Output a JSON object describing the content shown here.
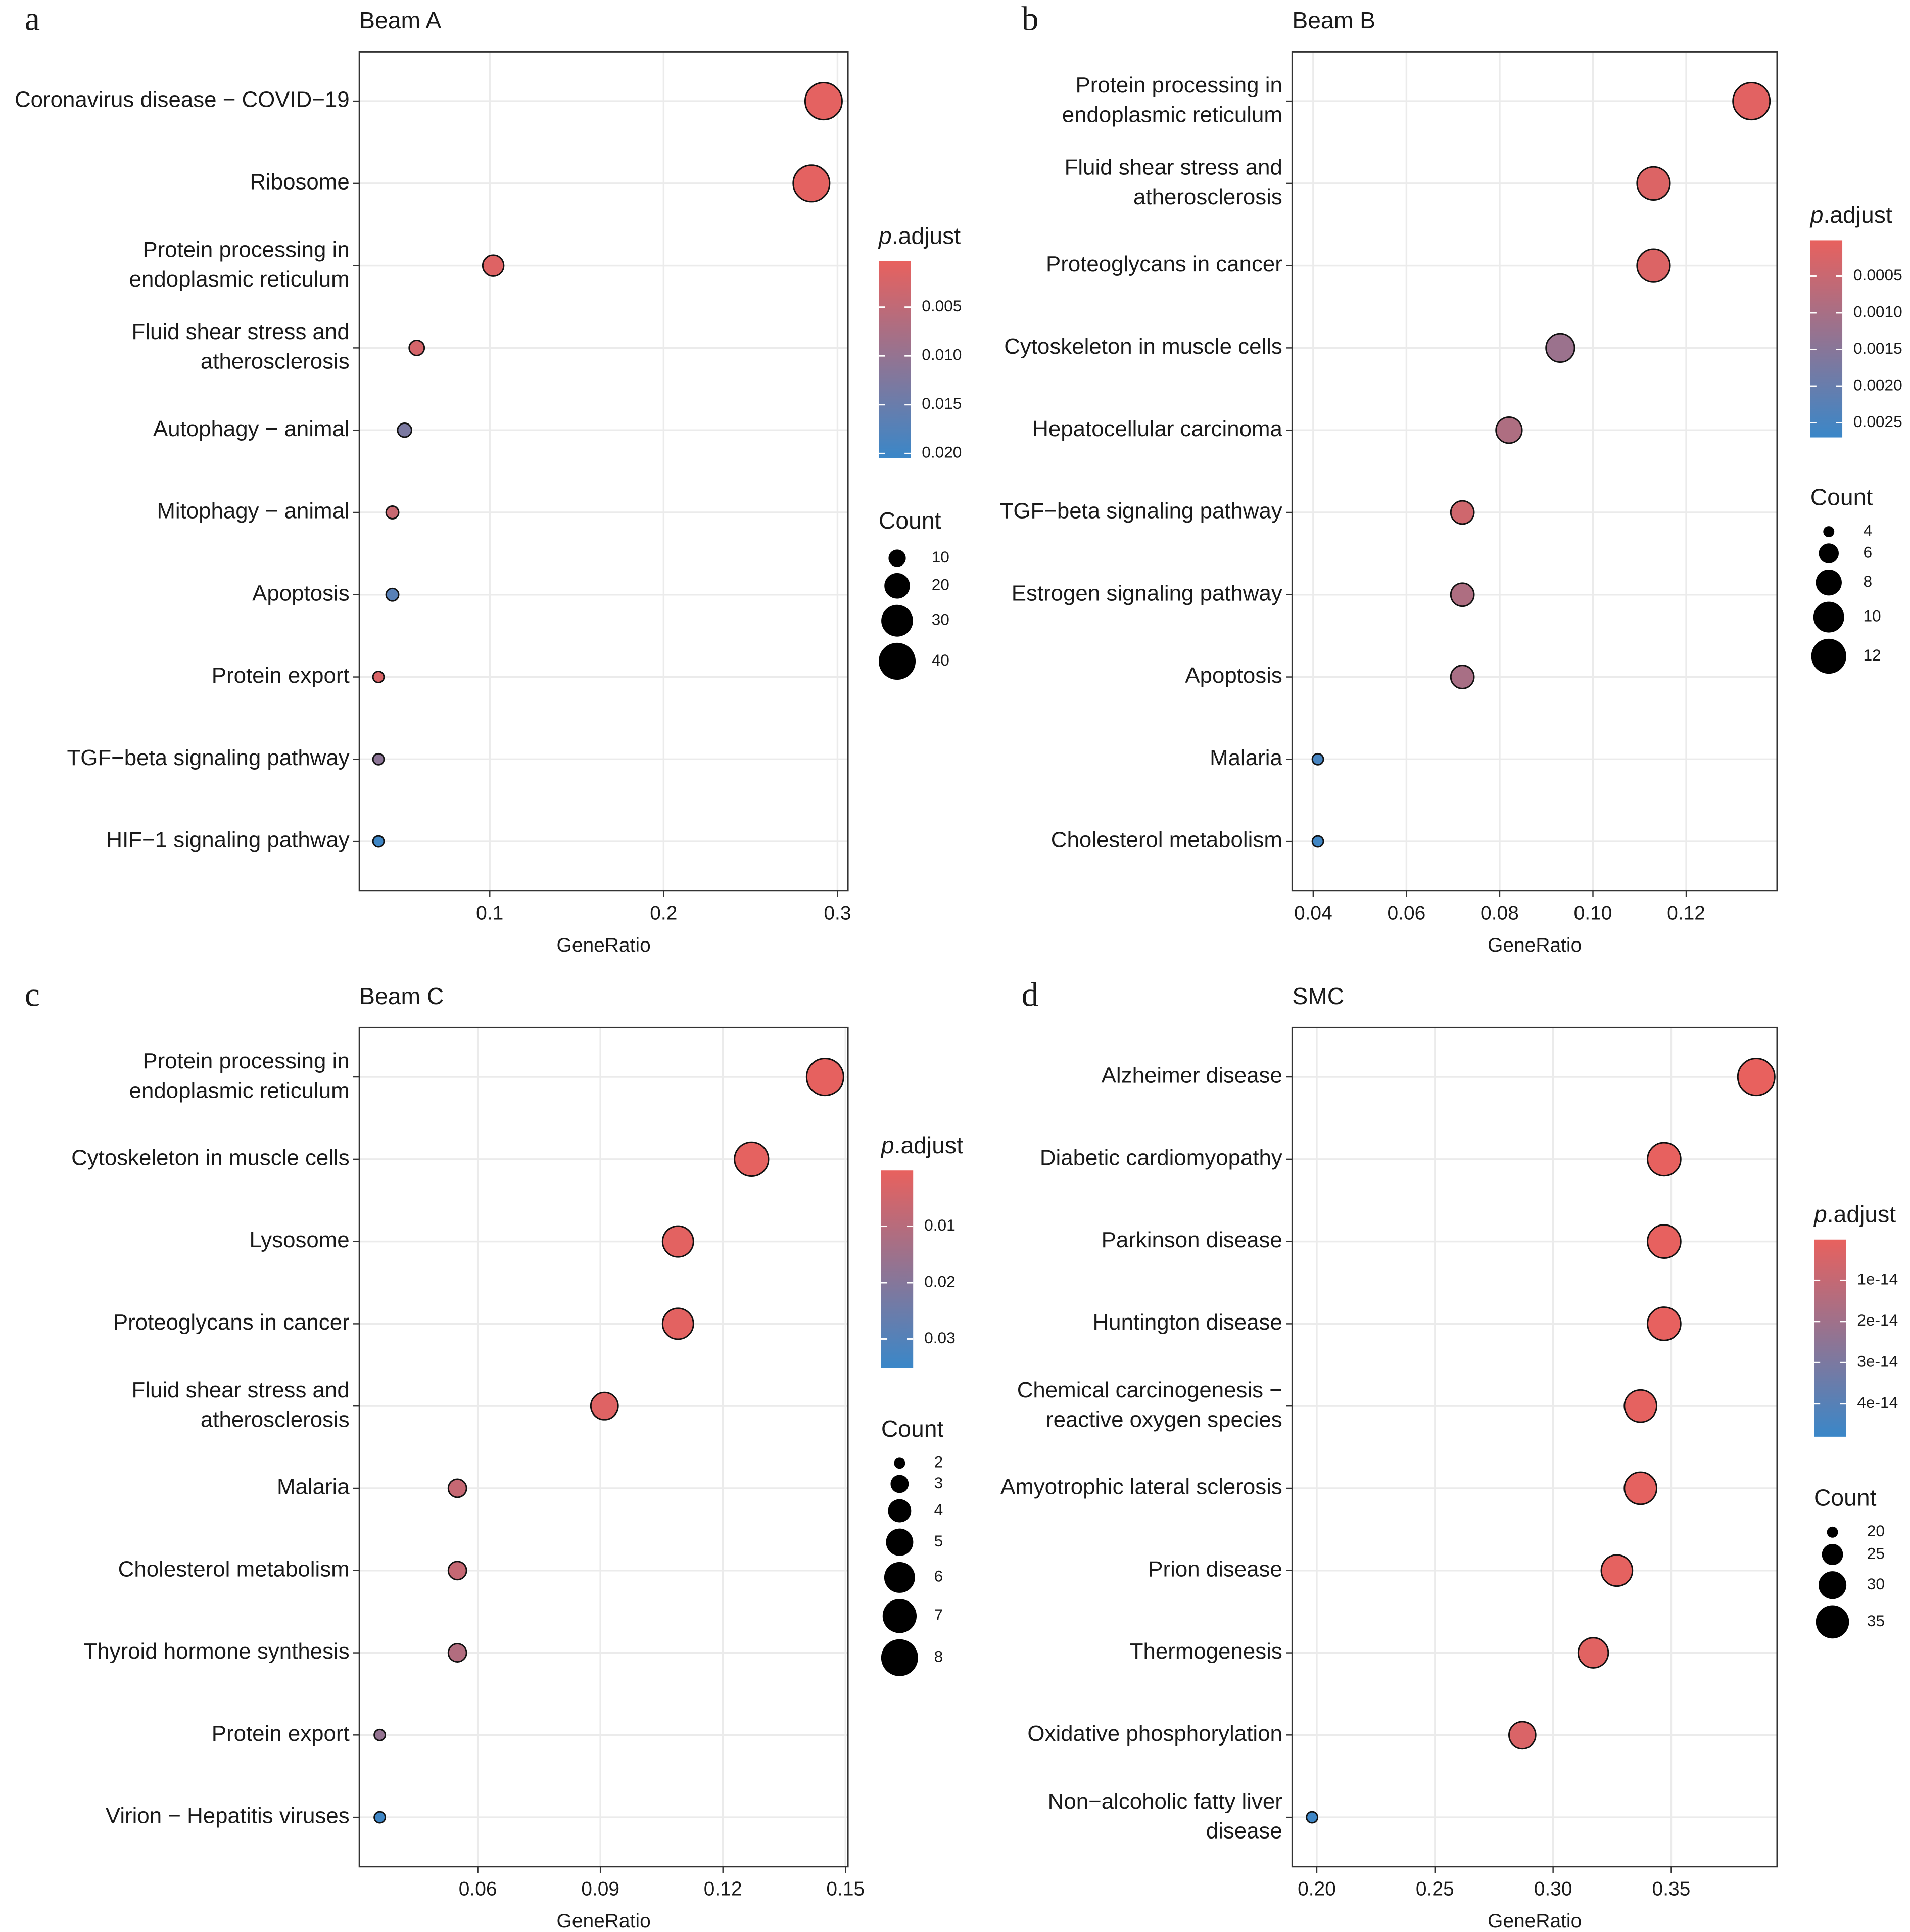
{
  "chart_data": [
    {
      "type": "dot",
      "panel": "a",
      "title": "Beam A",
      "x_label": "GeneRatio",
      "categories": [
        "Coronavirus disease − COVID−19",
        "Ribosome",
        "Protein processing in\nendoplasmic reticulum",
        "Fluid shear stress and\natherosclerosis",
        "Autophagy − animal",
        "Mitophagy − animal",
        "Apoptosis",
        "Protein export",
        "TGF−beta signaling pathway",
        "HIF−1 signaling pathway"
      ],
      "values": [
        0.292,
        0.285,
        0.102,
        0.058,
        0.051,
        0.044,
        0.044,
        0.036,
        0.036,
        0.036
      ],
      "sizes": [
        40,
        39,
        14,
        8,
        7,
        6,
        6,
        5,
        5,
        5
      ],
      "padjust": [
        0.0008,
        0.0008,
        0.0015,
        0.0025,
        0.013,
        0.004,
        0.017,
        0.002,
        0.011,
        0.02
      ],
      "xlim": [
        0.025,
        0.306
      ],
      "xticks": [
        0.1,
        0.2,
        0.3
      ],
      "color_title": "p.adjust",
      "color_low": "#e8615e",
      "color_high": "#3a87c8",
      "clim": [
        0.0003,
        0.0205
      ],
      "cticks": [
        0.005,
        {
          "value": 0.01,
          "label": "0.010"
        },
        0.015,
        {
          "value": 0.02,
          "label": "0.020"
        }
      ],
      "size_title": "Count",
      "size_ticks": [
        10,
        20,
        30,
        40
      ],
      "grid": true
    },
    {
      "type": "dot",
      "panel": "b",
      "title": "Beam B",
      "x_label": "GeneRatio",
      "categories": [
        "Protein processing in\nendoplasmic reticulum",
        "Fluid shear stress and\natherosclerosis",
        "Proteoglycans in cancer",
        "Cytoskeleton in muscle cells",
        "Hepatocellular carcinoma",
        "TGF−beta signaling pathway",
        "Estrogen signaling pathway",
        "Apoptosis",
        "Malaria",
        "Cholesterol metabolism"
      ],
      "values": [
        0.134,
        0.113,
        0.113,
        0.093,
        0.082,
        0.072,
        0.072,
        0.072,
        0.041,
        0.041
      ],
      "sizes": [
        13,
        11,
        11,
        9,
        8,
        7,
        7,
        7,
        4,
        4
      ],
      "padjust": [
        0.0001,
        0.0002,
        0.0002,
        0.0012,
        0.0009,
        0.0004,
        0.0009,
        0.001,
        0.0025,
        0.0026
      ],
      "xlim": [
        0.0355,
        0.1395
      ],
      "xticks": [
        0.04,
        0.06,
        0.08,
        {
          "value": 0.1,
          "label": "0.10"
        },
        0.12
      ],
      "color_title": "p.adjust",
      "color_low": "#e8615e",
      "color_high": "#3a87c8",
      "clim": [
        1e-05,
        0.0027
      ],
      "cticks": [
        0.0005,
        {
          "value": 0.001,
          "label": "0.0010"
        },
        0.0015,
        {
          "value": 0.002,
          "label": "0.0020"
        },
        0.0025
      ],
      "size_title": "Count",
      "size_ticks": [
        4,
        6,
        8,
        10,
        12
      ],
      "grid": true
    },
    {
      "type": "dot",
      "panel": "c",
      "title": "Beam C",
      "x_label": "GeneRatio",
      "categories": [
        "Protein processing in\nendoplasmic reticulum",
        "Cytoskeleton in muscle cells",
        "Lysosome",
        "Proteoglycans in cancer",
        "Fluid shear stress and\natherosclerosis",
        "Malaria",
        "Cholesterol metabolism",
        "Thyroid hormone synthesis",
        "Protein export",
        "Virion − Hepatitis viruses"
      ],
      "values": [
        0.145,
        0.127,
        0.109,
        0.109,
        0.091,
        0.055,
        0.055,
        0.055,
        0.036,
        0.036
      ],
      "sizes": [
        8,
        7,
        6,
        6,
        5,
        3,
        3,
        3,
        2,
        2
      ],
      "padjust": [
        0.0005,
        0.0008,
        0.0012,
        0.0012,
        0.002,
        0.007,
        0.007,
        0.011,
        0.017,
        0.034
      ],
      "xlim": [
        0.031,
        0.1506
      ],
      "xticks": [
        0.06,
        0.09,
        0.12,
        0.15
      ],
      "color_title": "p.adjust",
      "color_low": "#e8615e",
      "color_high": "#3a87c8",
      "clim": [
        0.0001,
        0.0351
      ],
      "cticks": [
        0.01,
        0.02,
        0.03
      ],
      "size_title": "Count",
      "size_ticks": [
        2,
        3,
        4,
        5,
        6,
        7,
        8
      ],
      "grid": true
    },
    {
      "type": "dot",
      "panel": "d",
      "title": "SMC",
      "x_label": "GeneRatio",
      "categories": [
        "Alzheimer disease",
        "Diabetic cardiomyopathy",
        "Parkinson disease",
        "Huntington disease",
        "Chemical carcinogenesis −\nreactive oxygen species",
        "Amyotrophic lateral sclerosis",
        "Prion disease",
        "Thermogenesis",
        "Oxidative phosphorylation",
        "Non−alcoholic fatty liver\ndisease"
      ],
      "values": [
        0.386,
        0.347,
        0.347,
        0.347,
        0.337,
        0.337,
        0.327,
        0.317,
        0.287,
        0.198
      ],
      "sizes": [
        39,
        35,
        35,
        35,
        34,
        34,
        33,
        32,
        29,
        20
      ],
      "padjust": [
        2e-16,
        5e-16,
        5e-16,
        5e-16,
        8e-16,
        8e-16,
        1e-15,
        2e-15,
        4e-15,
        4.7e-14
      ],
      "xlim": [
        0.1896,
        0.3948
      ],
      "xticks": [
        {
          "value": 0.2,
          "label": "0.20"
        },
        0.25,
        {
          "value": 0.3,
          "label": "0.30"
        },
        0.35
      ],
      "color_title": "p.adjust",
      "color_low": "#e8615e",
      "color_high": "#3a87c8",
      "clim": [
        1e-16,
        4.8e-14
      ],
      "cticks": [
        1e-14,
        2e-14,
        3e-14,
        4e-14
      ],
      "size_title": "Count",
      "size_ticks": [
        20,
        25,
        30,
        35
      ],
      "grid": true
    }
  ]
}
